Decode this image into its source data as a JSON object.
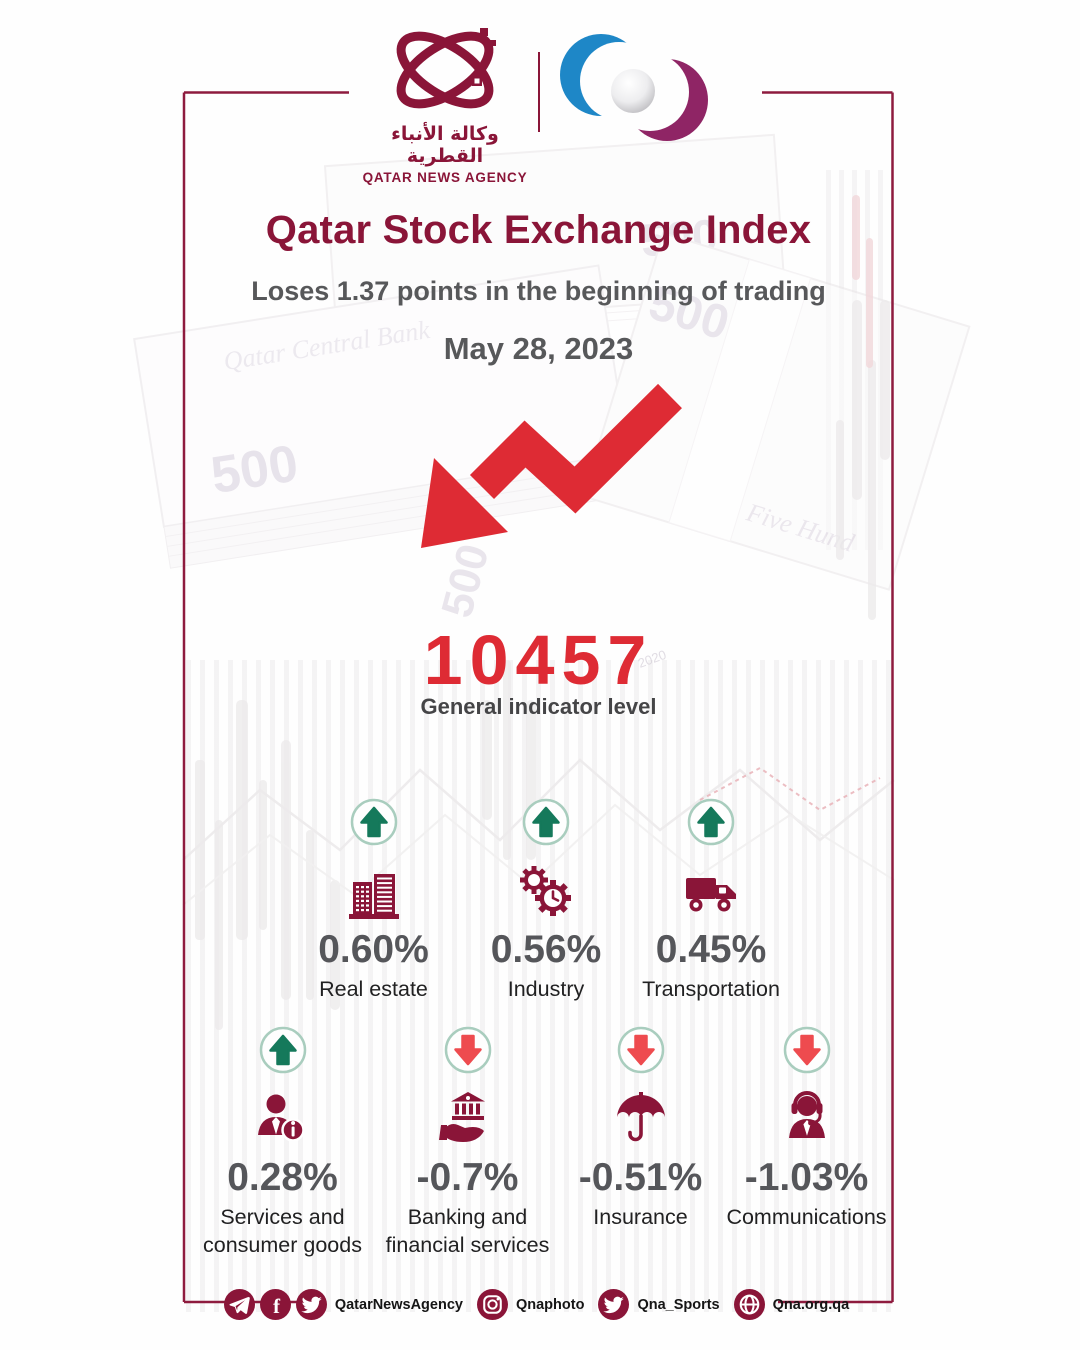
{
  "brand": {
    "qna": {
      "arabic": "وكالة الأنباء القطرية",
      "english": "QATAR NEWS AGENCY"
    }
  },
  "headline": {
    "title": "Qatar Stock Exchange Index",
    "subtitle": "Loses 1.37 points in the beginning of trading",
    "date": "May 28, 2023"
  },
  "indicator": {
    "value": "10457",
    "label": "General indicator level"
  },
  "sectors": {
    "row1": [
      {
        "value": "0.60%",
        "label": "Real estate",
        "direction": "up",
        "icon": "building"
      },
      {
        "value": "0.56%",
        "label": "Industry",
        "direction": "up",
        "icon": "gears"
      },
      {
        "value": "0.45%",
        "label": "Transportation",
        "direction": "up",
        "icon": "truck"
      }
    ],
    "row2": [
      {
        "value": "0.28%",
        "label": "Services and consumer goods",
        "direction": "up",
        "icon": "services-person"
      },
      {
        "value": "-0.7%",
        "label": "Banking and financial services",
        "direction": "down",
        "icon": "bank-hand"
      },
      {
        "value": "-0.51%",
        "label": "Insurance",
        "direction": "down",
        "icon": "umbrella"
      },
      {
        "value": "-1.03%",
        "label": "Communications",
        "direction": "down",
        "icon": "headset-person"
      }
    ]
  },
  "footer": {
    "groups": [
      {
        "icons": [
          "telegram",
          "facebook",
          "twitter"
        ],
        "label": "QatarNewsAgency"
      },
      {
        "icons": [
          "instagram"
        ],
        "label": "Qnaphoto"
      },
      {
        "icons": [
          "twitter"
        ],
        "label": "Qna_Sports"
      },
      {
        "icons": [
          "globe"
        ],
        "label": "Qna.org.qa"
      }
    ]
  },
  "colors": {
    "maroon": "#8A1538",
    "bright_red": "#DE2B34",
    "green": "#15795B",
    "down_red": "#EE4B4F",
    "mint_border": "#A9CDBE",
    "value_gray": "#55565A",
    "text_dark": "#212122"
  }
}
